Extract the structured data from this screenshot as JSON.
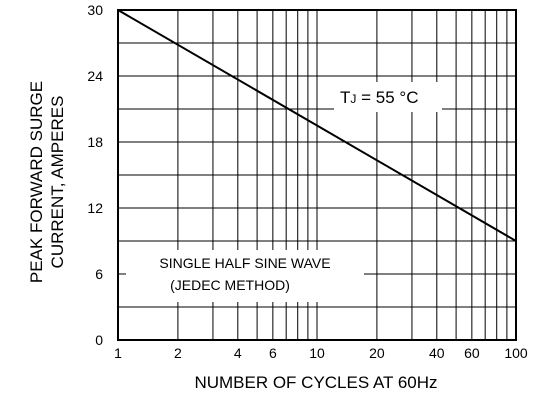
{
  "chart_data": {
    "type": "line",
    "xlabel": "NUMBER OF CYCLES AT 60Hz",
    "ylabel_lines": [
      "PEAK FORWARD SURGE",
      "CURRENT, AMPERES"
    ],
    "x_scale": "log",
    "xlim": [
      1,
      100
    ],
    "ylim": [
      0,
      30
    ],
    "x_tick_labels": [
      "1",
      "2",
      "4",
      "6",
      "10",
      "20",
      "40",
      "60",
      "100"
    ],
    "x_tick_values": [
      1,
      2,
      4,
      6,
      10,
      20,
      40,
      60,
      100
    ],
    "y_ticks": [
      0,
      6,
      12,
      18,
      24,
      30
    ],
    "grid": true,
    "series": [
      {
        "x": [
          1,
          100
        ],
        "y": [
          30,
          9
        ]
      }
    ],
    "annotations": {
      "tj_prefix": "T",
      "tj_subscript": "J",
      "tj_suffix": " = 55 °C",
      "waveform_line1": "SINGLE HALF SINE WAVE",
      "waveform_line2": "(JEDEC METHOD)"
    }
  }
}
